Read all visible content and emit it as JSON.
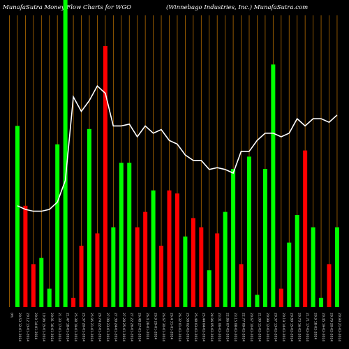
{
  "title_left": "MunafaSutra  Money  Flow  Charts for WGO",
  "title_right": "(Winnebago  Industries,  Inc.) MunafaSutra.com",
  "chart_data": {
    "type": "bar",
    "title": "MunafaSutra Money Flow Charts for WGO",
    "subtitle": "(Winnebago Industries, Inc.) MunafaSutra.com",
    "colors": {
      "up": "#00ff00",
      "down": "#ff0000",
      "line": "#ffffff",
      "grid": "#b36b00",
      "background": "#000000"
    },
    "ylim": [
      0,
      100
    ],
    "categories": [
      "0%",
      "20.53 12-01-2024",
      "20.12 13-01-2024",
      "20.9 14-01-2024",
      "19.96 15-01-2024",
      "20.91 16-01-2024",
      "21.33 17-01-2024",
      "21.47 18-01-2024",
      "25.38 19-01-2024",
      "25.37 20-01-2024",
      "25.95 21-01-2024",
      "26.74 22-01-2024",
      "27.09 23-01-2024",
      "27.39 24-01-2024",
      "27.28 25-01-2024",
      "27.22 26-01-2024",
      "26.48 27-01-2024",
      "26.4 28-01-2024",
      "26.9 29-01-2024",
      "26.67 30-01-2024",
      "26.4 31-01-2024",
      "26.32 01-02-2024",
      "25.58 02-02-2024",
      "25.48 03-02-2024",
      "25.44 04-02-2024",
      "24.96 05-02-2024",
      "23.01 06-02-2024",
      "22.86 07-02-2024",
      "23.15 08-02-2024",
      "22.77 09-02-2024",
      "20.67 10-02-2024",
      "21.09 11-02-2024",
      "20.99 12-02-2024",
      "20.37 13-02-2024",
      "20.19 14-02-2024",
      "20.89 15-02-2024",
      "20.73 16-02-2024",
      "21.71 17-02-2024",
      "20.9 18-02-2024",
      "20.45 19-02-2024",
      "20.79 20-02-2024",
      "20.93 21-02-2024"
    ],
    "bar_values": [
      0,
      59,
      33,
      14,
      16,
      6,
      53,
      100,
      3,
      20,
      58,
      24,
      85,
      26,
      47,
      47,
      26,
      31,
      38,
      20,
      38,
      37,
      23,
      29,
      26,
      12,
      24,
      31,
      45,
      14,
      49,
      4,
      45,
      79,
      6,
      21,
      30,
      51,
      26,
      3,
      14,
      26
    ],
    "bar_colors": [
      "none",
      "green",
      "red",
      "red",
      "green",
      "green",
      "green",
      "green",
      "red",
      "red",
      "green",
      "red",
      "red",
      "green",
      "green",
      "green",
      "red",
      "red",
      "green",
      "red",
      "red",
      "red",
      "green",
      "red",
      "red",
      "green",
      "red",
      "green",
      "green",
      "red",
      "green",
      "green",
      "green",
      "green",
      "red",
      "green",
      "green",
      "red",
      "green",
      "green",
      "red",
      "green"
    ],
    "line_values": [
      null,
      41,
      40,
      39.5,
      39.5,
      40,
      42,
      48,
      71,
      67,
      70,
      74,
      72,
      63,
      63,
      63.5,
      60,
      63,
      61,
      62,
      59,
      58,
      55,
      53.5,
      53.5,
      51,
      51.5,
      51,
      50,
      56,
      56,
      59,
      61,
      61,
      60,
      61,
      65,
      63,
      65,
      65,
      64,
      66
    ]
  }
}
